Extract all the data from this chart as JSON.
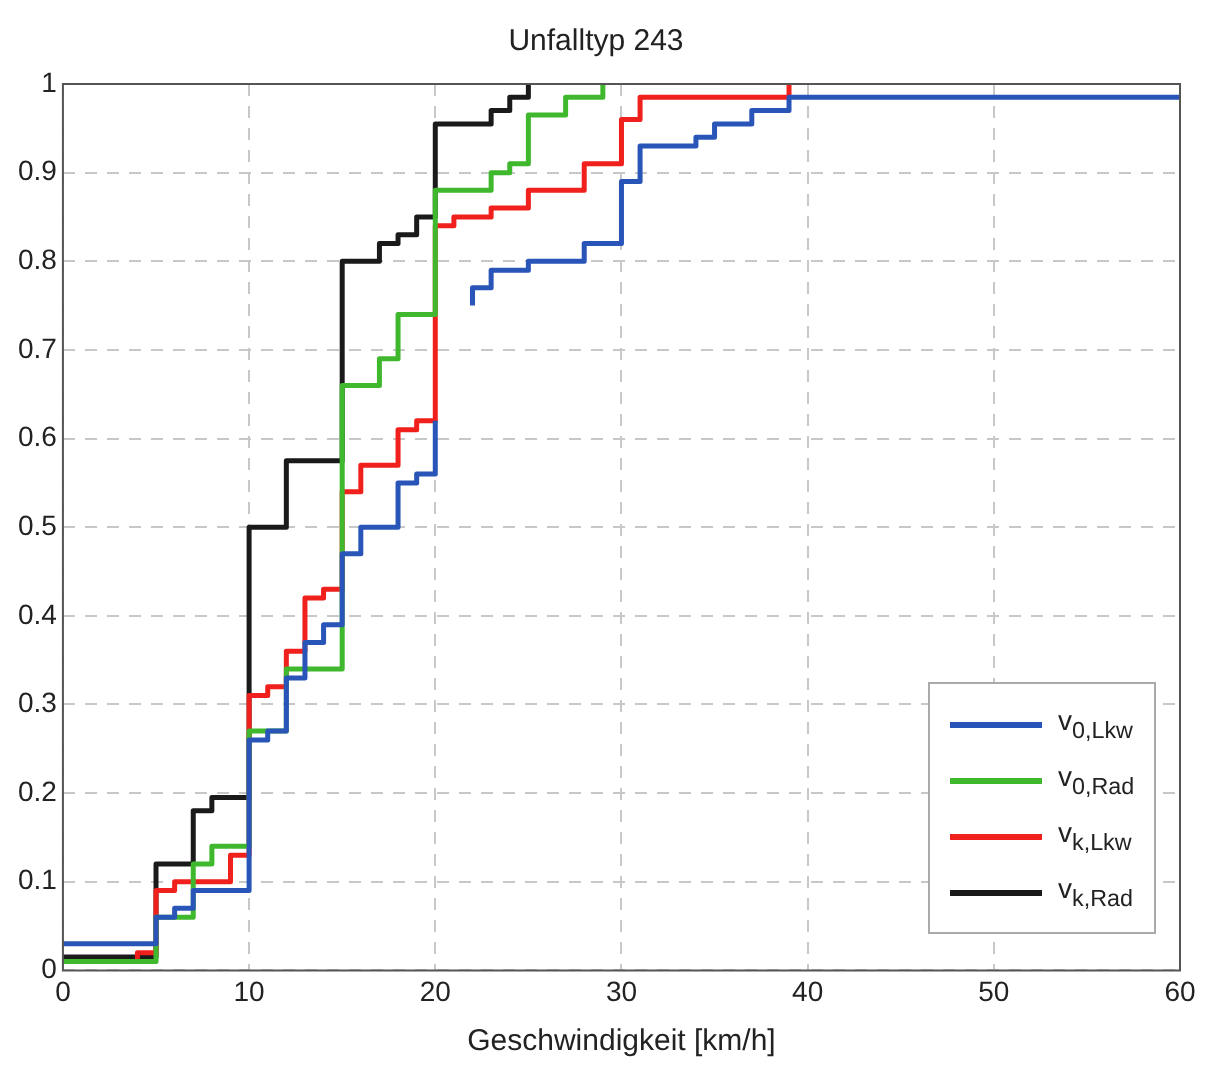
{
  "chart_data": {
    "type": "step",
    "title": "Unfalltyp 243",
    "xlabel": "Geschwindigkeit [km/h]",
    "xlim": [
      0,
      60
    ],
    "xticks": [
      0,
      10,
      20,
      30,
      40,
      50,
      60
    ],
    "ylim": [
      0,
      1
    ],
    "yticks": [
      0,
      0.1,
      0.2,
      0.3,
      0.4,
      0.5,
      0.6,
      0.7,
      0.8,
      0.9,
      1
    ],
    "grid": true,
    "legend": "bottom right",
    "marker": "none",
    "line_style": "solid",
    "series": [
      {
        "name": "v$_{0,Lkw}$",
        "color": "#2a55b8",
        "x": [
          0,
          5,
          6,
          7,
          10,
          11,
          12,
          13,
          14,
          15,
          16,
          18,
          19,
          20,
          21,
          22,
          22,
          23,
          25,
          28,
          30,
          31,
          34,
          35,
          37,
          39,
          60
        ],
        "values": [
          0.03,
          0.06,
          0.07,
          0.09,
          0.26,
          0.27,
          0.33,
          0.37,
          0.39,
          0.47,
          0.5,
          0.55,
          0.56,
          0.62,
          null,
          0.75,
          0.77,
          0.79,
          0.8,
          0.82,
          0.89,
          0.93,
          0.94,
          0.955,
          0.97,
          0.985,
          0.985
        ]
      },
      {
        "name": "v$_{0,Rad}$",
        "color": "#3fb82e",
        "x": [
          0,
          5,
          7,
          8,
          10,
          12,
          15,
          17,
          18,
          20,
          23,
          24,
          25,
          27,
          29
        ],
        "values": [
          0.01,
          0.06,
          0.12,
          0.14,
          0.27,
          0.34,
          0.66,
          0.69,
          0.74,
          0.88,
          0.9,
          0.91,
          0.965,
          0.985,
          1
        ]
      },
      {
        "name": "v$_{k,Lkw}$",
        "color": "#f0201c",
        "x": [
          0,
          4,
          5,
          6,
          9,
          10,
          11,
          12,
          13,
          14,
          15,
          16,
          18,
          19,
          20,
          21,
          23,
          25,
          28,
          30,
          31,
          39
        ],
        "values": [
          0.01,
          0.02,
          0.09,
          0.1,
          0.13,
          0.31,
          0.32,
          0.36,
          0.42,
          0.43,
          0.54,
          0.57,
          0.61,
          0.62,
          0.84,
          0.85,
          0.86,
          0.88,
          0.91,
          0.96,
          0.985,
          1
        ]
      },
      {
        "name": "v$_{k,Rad}$",
        "color": "#1a1a1a",
        "x": [
          0,
          5,
          7,
          8,
          10,
          12,
          15,
          17,
          18,
          19,
          20,
          23,
          24,
          25
        ],
        "values": [
          0.015,
          0.12,
          0.18,
          0.195,
          0.5,
          0.575,
          0.8,
          0.82,
          0.83,
          0.85,
          0.955,
          0.97,
          0.985,
          1
        ]
      }
    ]
  }
}
